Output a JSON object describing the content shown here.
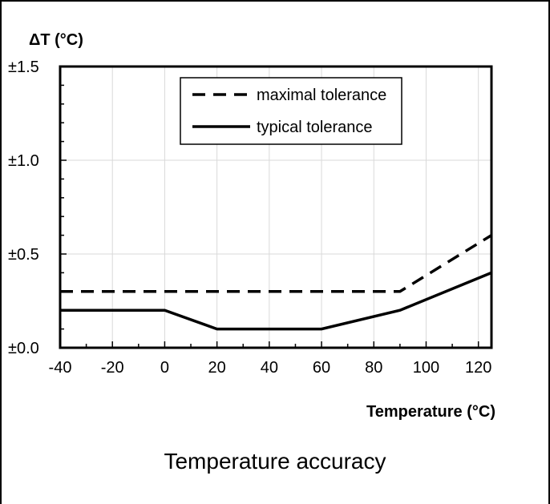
{
  "chart_data": {
    "type": "line",
    "ylabel": "ΔT (°C)",
    "xlabel": "Temperature (°C)",
    "xlim": [
      -40,
      125
    ],
    "ylim": [
      0,
      1.5
    ],
    "x_ticks": [
      -40,
      -20,
      0,
      20,
      40,
      60,
      80,
      100,
      120
    ],
    "x_tick_labels": [
      "-40",
      "-20",
      "0",
      "20",
      "40",
      "60",
      "80",
      "100",
      "120"
    ],
    "y_ticks": [
      0,
      0.5,
      1.0,
      1.5
    ],
    "y_tick_labels": [
      "±0.0",
      "±0.5",
      "±1.0",
      "±1.5"
    ],
    "grid": true,
    "legend_position": "top-center",
    "series": [
      {
        "name": "maximal tolerance",
        "style": "dashed",
        "color": "#000000",
        "x": [
          -40,
          90,
          125
        ],
        "y": [
          0.3,
          0.3,
          0.6
        ]
      },
      {
        "name": "typical tolerance",
        "style": "solid",
        "color": "#000000",
        "x": [
          -40,
          0,
          20,
          60,
          90,
          125
        ],
        "y": [
          0.2,
          0.2,
          0.1,
          0.1,
          0.2,
          0.4
        ]
      }
    ]
  },
  "caption": "Temperature accuracy"
}
